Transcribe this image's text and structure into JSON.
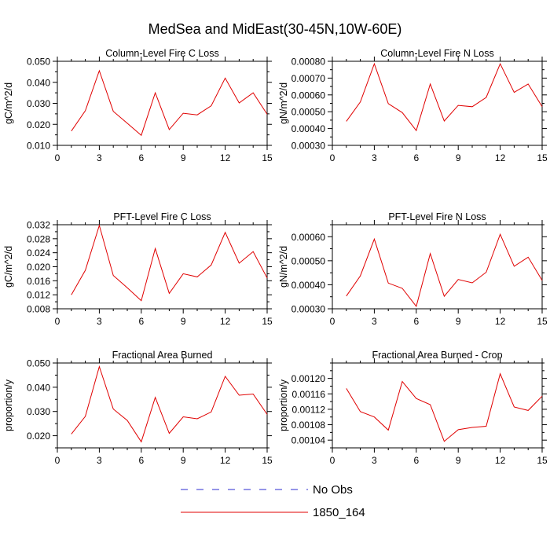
{
  "title": "MedSea and MidEast(30-45N,10W-60E)",
  "chart_data": [
    {
      "type": "line",
      "title": "Column-Level Fire C Loss",
      "ylabel": "gC/m^2/d",
      "xlim": [
        0,
        15
      ],
      "ylim": [
        0.01,
        0.05
      ],
      "xticks": [
        0,
        3,
        6,
        9,
        12,
        15
      ],
      "yticks": [
        0.01,
        0.02,
        0.03,
        0.04,
        0.05
      ],
      "ytick_labels": [
        "0.010",
        "0.020",
        "0.030",
        "0.040",
        "0.050"
      ],
      "series": [
        {
          "name": "1850_164",
          "x": [
            1,
            2,
            3,
            4,
            5,
            6,
            7,
            8,
            9,
            10,
            11,
            12,
            13,
            14,
            15
          ],
          "values": [
            0.0168,
            0.0265,
            0.0455,
            0.0262,
            0.0205,
            0.0148,
            0.035,
            0.0175,
            0.0253,
            0.0245,
            0.0288,
            0.042,
            0.0302,
            0.035,
            0.0248
          ]
        }
      ]
    },
    {
      "type": "line",
      "title": "Column-Level Fire N Loss",
      "ylabel": "gN/m^2/d",
      "xlim": [
        0,
        15
      ],
      "ylim": [
        0.0003,
        0.0008
      ],
      "xticks": [
        0,
        3,
        6,
        9,
        12,
        15
      ],
      "yticks": [
        0.0003,
        0.0004,
        0.0005,
        0.0006,
        0.0007,
        0.0008
      ],
      "ytick_labels": [
        "0.00030",
        "0.00040",
        "0.00050",
        "0.00060",
        "0.00070",
        "0.00080"
      ],
      "series": [
        {
          "name": "1850_164",
          "x": [
            1,
            2,
            3,
            4,
            5,
            6,
            7,
            8,
            9,
            10,
            11,
            12,
            13,
            14,
            15
          ],
          "values": [
            0.000443,
            0.000558,
            0.000785,
            0.000548,
            0.000495,
            0.000388,
            0.000665,
            0.000445,
            0.000538,
            0.00053,
            0.000585,
            0.000785,
            0.000615,
            0.000665,
            0.00053
          ]
        }
      ]
    },
    {
      "type": "line",
      "title": "PFT-Level Fire C Loss",
      "ylabel": "gC/m^2/d",
      "xlim": [
        0,
        15
      ],
      "ylim": [
        0.008,
        0.032
      ],
      "xticks": [
        0,
        3,
        6,
        9,
        12,
        15
      ],
      "yticks": [
        0.008,
        0.012,
        0.016,
        0.02,
        0.024,
        0.028,
        0.032
      ],
      "ytick_labels": [
        "0.008",
        "0.012",
        "0.016",
        "0.020",
        "0.024",
        "0.028",
        "0.032"
      ],
      "series": [
        {
          "name": "1850_164",
          "x": [
            1,
            2,
            3,
            4,
            5,
            6,
            7,
            8,
            9,
            10,
            11,
            12,
            13,
            14,
            15
          ],
          "values": [
            0.012,
            0.019,
            0.0318,
            0.0175,
            0.014,
            0.0103,
            0.0252,
            0.0124,
            0.018,
            0.0171,
            0.0205,
            0.0298,
            0.021,
            0.0243,
            0.0168
          ]
        }
      ]
    },
    {
      "type": "line",
      "title": "PFT-Level Fire N Loss",
      "ylabel": "gN/m^2/d",
      "xlim": [
        0,
        15
      ],
      "ylim": [
        0.0003,
        0.00065
      ],
      "xticks": [
        0,
        3,
        6,
        9,
        12,
        15
      ],
      "yticks": [
        0.0003,
        0.0004,
        0.0005,
        0.0006
      ],
      "ytick_labels": [
        "0.00030",
        "0.00040",
        "0.00050",
        "0.00060"
      ],
      "series": [
        {
          "name": "1850_164",
          "x": [
            1,
            2,
            3,
            4,
            5,
            6,
            7,
            8,
            9,
            10,
            11,
            12,
            13,
            14,
            15
          ],
          "values": [
            0.000353,
            0.000437,
            0.00059,
            0.000407,
            0.000385,
            0.00031,
            0.00053,
            0.000352,
            0.000422,
            0.000408,
            0.000452,
            0.00061,
            0.000477,
            0.000515,
            0.000418
          ]
        }
      ]
    },
    {
      "type": "line",
      "title": "Fractional Area Burned",
      "ylabel": "proportion/y",
      "xlim": [
        0,
        15
      ],
      "ylim": [
        0.015,
        0.05
      ],
      "xticks": [
        0,
        3,
        6,
        9,
        12,
        15
      ],
      "yticks": [
        0.02,
        0.03,
        0.04,
        0.05
      ],
      "ytick_labels": [
        "0.020",
        "0.030",
        "0.040",
        "0.050"
      ],
      "series": [
        {
          "name": "1850_164",
          "x": [
            1,
            2,
            3,
            4,
            5,
            6,
            7,
            8,
            9,
            10,
            11,
            12,
            13,
            14,
            15
          ],
          "values": [
            0.0207,
            0.028,
            0.0485,
            0.031,
            0.0263,
            0.0175,
            0.0358,
            0.021,
            0.0278,
            0.027,
            0.0298,
            0.0445,
            0.0367,
            0.0372,
            0.0288
          ]
        }
      ]
    },
    {
      "type": "line",
      "title": "Fractional Area Burned - Crop",
      "ylabel": "proportion/y",
      "xlim": [
        0,
        15
      ],
      "ylim": [
        0.00102,
        0.00124
      ],
      "xticks": [
        0,
        3,
        6,
        9,
        12,
        15
      ],
      "yticks": [
        0.00104,
        0.00108,
        0.00112,
        0.00116,
        0.0012
      ],
      "ytick_labels": [
        "0.00104",
        "0.00108",
        "0.00112",
        "0.00116",
        "0.00120"
      ],
      "series": [
        {
          "name": "1850_164",
          "x": [
            1,
            2,
            3,
            4,
            5,
            6,
            7,
            8,
            9,
            10,
            11,
            12,
            13,
            14,
            15
          ],
          "values": [
            0.001174,
            0.001114,
            0.0011,
            0.001066,
            0.001192,
            0.001148,
            0.001132,
            0.001037,
            0.001067,
            0.001073,
            0.001076,
            0.001212,
            0.001126,
            0.001117,
            0.001154
          ]
        }
      ]
    }
  ],
  "legend": {
    "items": [
      {
        "label": "No Obs",
        "style": "dashed",
        "color": "#2b2bd0"
      },
      {
        "label": "1850_164",
        "style": "solid",
        "color": "#e00000"
      }
    ]
  },
  "colors": {
    "series": "#e00000"
  }
}
